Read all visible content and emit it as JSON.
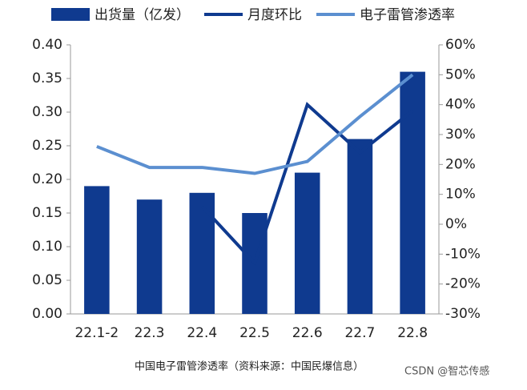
{
  "chart_data": {
    "type": "bar_line",
    "categories": [
      "22.1-2",
      "22.3",
      "22.4",
      "22.5",
      "22.6",
      "22.7",
      "22.8"
    ],
    "series": [
      {
        "name": "出货量（亿发）",
        "type": "bar",
        "color": "#0f3a8f",
        "values": [
          0.19,
          0.17,
          0.18,
          0.15,
          0.21,
          0.26,
          0.36
        ]
      },
      {
        "name": "月度环比",
        "type": "line",
        "axis": "y2",
        "color": "#0f3a8f",
        "values": [
          null,
          null,
          6,
          -13,
          40,
          24,
          38
        ]
      },
      {
        "name": "电子雷管渗透率",
        "type": "line",
        "axis": "y2",
        "color": "#5b8fd0",
        "values": [
          26,
          19,
          19,
          17,
          21,
          36,
          50
        ]
      }
    ],
    "ylim": [
      0,
      0.4
    ],
    "yticks": [
      {
        "value": 0,
        "label": "0.00"
      },
      {
        "value": 0.05,
        "label": "0.05"
      },
      {
        "value": 0.1,
        "label": "0.10"
      },
      {
        "value": 0.15,
        "label": "0.15"
      },
      {
        "value": 0.2,
        "label": "0.20"
      },
      {
        "value": 0.25,
        "label": "0.25"
      },
      {
        "value": 0.3,
        "label": "0.30"
      },
      {
        "value": 0.35,
        "label": "0.35"
      },
      {
        "value": 0.4,
        "label": "0.40"
      }
    ],
    "y2lim": [
      -30,
      60
    ],
    "y2ticks": [
      {
        "value": -30,
        "label": "-30%"
      },
      {
        "value": -20,
        "label": "-20%"
      },
      {
        "value": -10,
        "label": "-10%"
      },
      {
        "value": 0,
        "label": "0%"
      },
      {
        "value": 10,
        "label": "10%"
      },
      {
        "value": 20,
        "label": "20%"
      },
      {
        "value": 30,
        "label": "30%"
      },
      {
        "value": 40,
        "label": "40%"
      },
      {
        "value": 50,
        "label": "50%"
      },
      {
        "value": 60,
        "label": "60%"
      }
    ],
    "caption": "中国电子雷管渗透率（资料来源：中国民爆信息）",
    "watermark": "CSDN @智芯传感"
  }
}
